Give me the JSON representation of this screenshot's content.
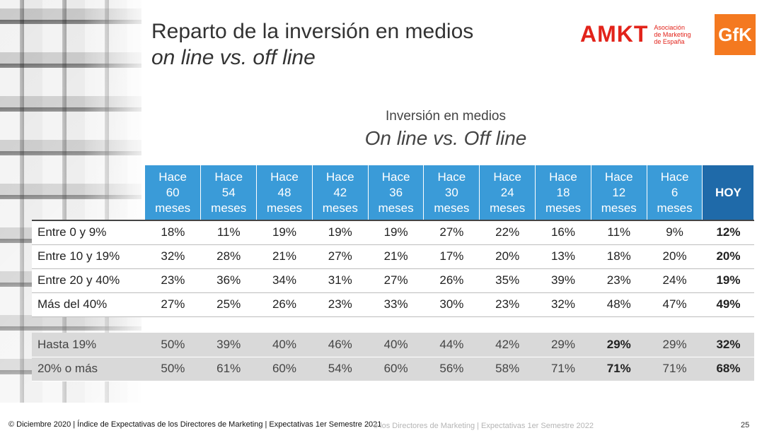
{
  "title": {
    "main": "Reparto de la inversión en medios",
    "sub": "on line vs. off line"
  },
  "logos": {
    "amkt_word": "AMKT",
    "amkt_line1": "Asociación",
    "amkt_line2": "de Marketing",
    "amkt_line3": "de España",
    "gfk": "GfK",
    "amkt_color": "#e2231a",
    "gfk_color": "#f47920"
  },
  "chart_heading": {
    "line1": "Inversión en medios",
    "line2": "On line vs. Off line"
  },
  "table": {
    "header_color": "#3a9bd8",
    "hoy_color": "#1f6aa9",
    "columns": [
      {
        "l1": "Hace",
        "l2": "60",
        "l3": "meses"
      },
      {
        "l1": "Hace",
        "l2": "54",
        "l3": "meses"
      },
      {
        "l1": "Hace",
        "l2": "48",
        "l3": "meses"
      },
      {
        "l1": "Hace",
        "l2": "42",
        "l3": "meses"
      },
      {
        "l1": "Hace",
        "l2": "36",
        "l3": "meses"
      },
      {
        "l1": "Hace",
        "l2": "30",
        "l3": "meses"
      },
      {
        "l1": "Hace",
        "l2": "24",
        "l3": "meses"
      },
      {
        "l1": "Hace",
        "l2": "18",
        "l3": "meses"
      },
      {
        "l1": "Hace",
        "l2": "12",
        "l3": "meses"
      },
      {
        "l1": "Hace",
        "l2": "6",
        "l3": "meses"
      }
    ],
    "hoy_label": "HOY",
    "rows": [
      {
        "label": "Entre 0 y 9%",
        "values": [
          "18%",
          "11%",
          "19%",
          "19%",
          "19%",
          "27%",
          "22%",
          "16%",
          "11%",
          "9%",
          "12%"
        ]
      },
      {
        "label": "Entre 10 y 19%",
        "values": [
          "32%",
          "28%",
          "21%",
          "27%",
          "21%",
          "17%",
          "20%",
          "13%",
          "18%",
          "20%",
          "20%"
        ]
      },
      {
        "label": "Entre 20 y 40%",
        "values": [
          "23%",
          "36%",
          "34%",
          "31%",
          "27%",
          "26%",
          "35%",
          "39%",
          "23%",
          "24%",
          "19%"
        ]
      },
      {
        "label": "Más del 40%",
        "values": [
          "27%",
          "25%",
          "26%",
          "23%",
          "33%",
          "30%",
          "23%",
          "32%",
          "48%",
          "47%",
          "49%"
        ]
      }
    ],
    "summary": [
      {
        "label": "Hasta 19%",
        "values": [
          "50%",
          "39%",
          "40%",
          "46%",
          "40%",
          "44%",
          "42%",
          "29%",
          "29%",
          "29%",
          "32%"
        ]
      },
      {
        "label": "20% o más",
        "values": [
          "50%",
          "61%",
          "60%",
          "54%",
          "60%",
          "56%",
          "58%",
          "71%",
          "71%",
          "71%",
          "68%"
        ]
      }
    ]
  },
  "footer": {
    "text": "© Diciembre 2020 | Índice de Expectativas de los Directores de Marketing | Expectativas 1er Semestre 2021",
    "ghost": "e los Directores de Marketing | Expectativas 1er Semestre 2022",
    "page": "25"
  }
}
